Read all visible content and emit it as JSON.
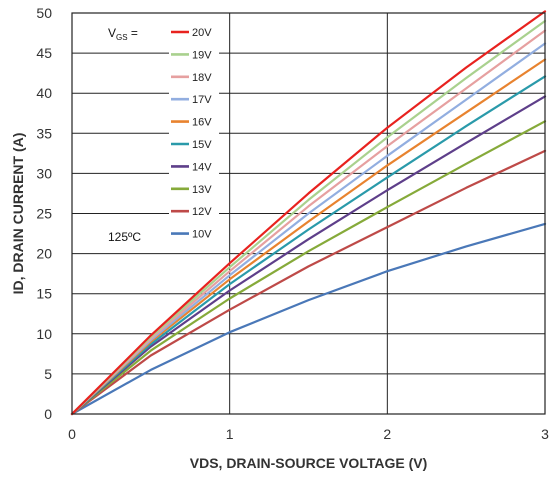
{
  "chart_data": {
    "type": "line",
    "xlabel": "VDS, DRAIN-SOURCE VOLTAGE (V)",
    "ylabel": "ID, DRAIN CURRENT (A)",
    "xlim": [
      0,
      3
    ],
    "ylim": [
      0,
      50
    ],
    "x_ticks": [
      "0",
      "1",
      "2",
      "3"
    ],
    "y_ticks": [
      "0",
      "5",
      "10",
      "15",
      "20",
      "25",
      "30",
      "35",
      "40",
      "45",
      "50"
    ],
    "grid": true,
    "legend_title_main": "V",
    "legend_title_sub": "GS",
    "legend_title_suffix": " =",
    "temperature_label": "125ºC",
    "legend_position": "top-left",
    "x": [
      0,
      0.5,
      1,
      1.5,
      2,
      2.5,
      3
    ],
    "series": [
      {
        "name": "20V",
        "color": "#e8221f",
        "values": [
          0,
          9.8,
          18.8,
          27.5,
          35.7,
          43.2,
          50.2
        ]
      },
      {
        "name": "19V",
        "color": "#a9d18e",
        "values": [
          0,
          9.6,
          18.3,
          26.7,
          34.5,
          41.9,
          49.0
        ]
      },
      {
        "name": "18V",
        "color": "#e6a0a0",
        "values": [
          0,
          9.4,
          17.8,
          25.9,
          33.4,
          40.6,
          47.8
        ]
      },
      {
        "name": "17V",
        "color": "#92aee0",
        "values": [
          0,
          9.2,
          17.3,
          25.0,
          32.2,
          39.2,
          46.2
        ]
      },
      {
        "name": "16V",
        "color": "#e8832f",
        "values": [
          0,
          9.0,
          16.8,
          24.0,
          31.0,
          37.6,
          44.2
        ]
      },
      {
        "name": "15V",
        "color": "#2a9aaa",
        "values": [
          0,
          8.7,
          16.2,
          23.0,
          29.5,
          35.9,
          42.1
        ]
      },
      {
        "name": "14V",
        "color": "#5e3f8a",
        "values": [
          0,
          8.4,
          15.4,
          21.8,
          27.9,
          33.8,
          39.6
        ]
      },
      {
        "name": "13V",
        "color": "#86aa3a",
        "values": [
          0,
          7.9,
          14.4,
          20.3,
          25.8,
          31.2,
          36.5
        ]
      },
      {
        "name": "12V",
        "color": "#be4a48",
        "values": [
          0,
          7.3,
          13.0,
          18.4,
          23.3,
          28.2,
          32.8
        ]
      },
      {
        "name": "10V",
        "color": "#4a78b8",
        "values": [
          0,
          5.5,
          10.2,
          14.2,
          17.8,
          20.9,
          23.7
        ]
      }
    ]
  }
}
